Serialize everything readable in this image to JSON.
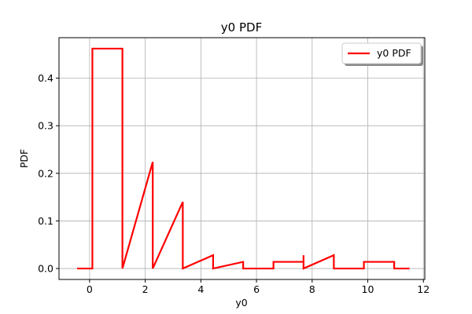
{
  "chart_data": {
    "type": "line",
    "title": "y0 PDF",
    "xlabel": "y0",
    "ylabel": "PDF",
    "xlim": [
      -1.1,
      12.05
    ],
    "ylim": [
      -0.023,
      0.485
    ],
    "xticks": [
      0,
      2,
      4,
      6,
      8,
      10,
      12
    ],
    "xtick_labels": [
      "0",
      "2",
      "4",
      "6",
      "8",
      "10",
      "12"
    ],
    "yticks": [
      0.0,
      0.1,
      0.2,
      0.3,
      0.4
    ],
    "ytick_labels": [
      "0.0",
      "0.1",
      "0.2",
      "0.3",
      "0.4"
    ],
    "grid": true,
    "legend": {
      "position": "top-right",
      "entries": [
        "y0 PDF"
      ]
    },
    "series": [
      {
        "name": "y0 PDF",
        "color": "#ff0000",
        "style": "histogram-step",
        "x": [
          -0.45,
          0.1,
          0.1,
          1.18,
          1.18,
          1.18,
          1.18,
          2.27,
          2.27,
          2.27,
          2.27,
          3.35,
          3.35,
          3.35,
          3.35,
          4.44,
          4.44,
          4.44,
          4.44,
          5.52,
          5.52,
          6.61,
          6.61,
          7.69,
          7.69,
          7.69,
          7.69,
          8.78,
          8.78,
          9.86,
          9.86,
          10.95,
          10.95,
          11.5
        ],
        "y": [
          0.0,
          0.0,
          0.462,
          0.462,
          0.0,
          0.224,
          0.0,
          0.224,
          0.0,
          0.14,
          0.0,
          0.14,
          0.0,
          0.028,
          0.0,
          0.028,
          0.0,
          0.014,
          0.0,
          0.014,
          0.0,
          0.0,
          0.014,
          0.014,
          0.0,
          0.028,
          0.0,
          0.028,
          0.0,
          0.0,
          0.014,
          0.014,
          0.0,
          0.0
        ]
      }
    ]
  }
}
